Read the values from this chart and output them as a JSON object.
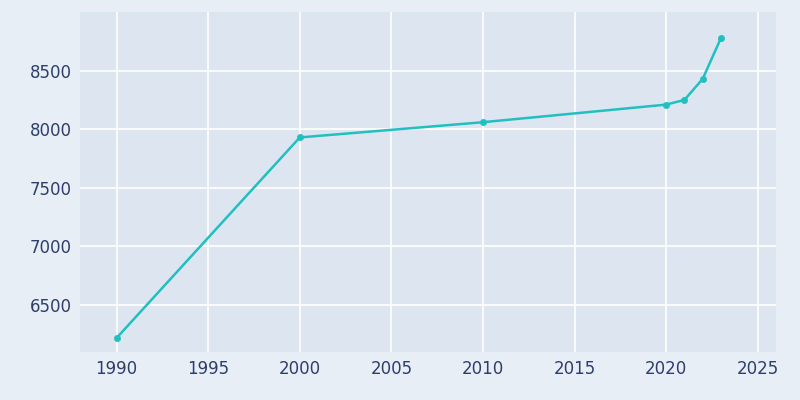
{
  "years": [
    1990,
    2000,
    2010,
    2020,
    2021,
    2022,
    2023
  ],
  "population": [
    6220,
    7930,
    8060,
    8210,
    8250,
    8430,
    8780
  ],
  "line_color": "#21c0c0",
  "marker_color": "#21c0c0",
  "fig_bg_color": "#e8eef5",
  "plot_bg_color": "#dde6f0",
  "grid_color": "#ffffff",
  "tick_color": "#2d3e6d",
  "xlim": [
    1988,
    2026
  ],
  "ylim": [
    6100,
    9000
  ],
  "xticks": [
    1990,
    1995,
    2000,
    2005,
    2010,
    2015,
    2020,
    2025
  ],
  "yticks": [
    6500,
    7000,
    7500,
    8000,
    8500
  ],
  "line_width": 1.8,
  "marker_size": 4.5,
  "tick_fontsize": 12
}
